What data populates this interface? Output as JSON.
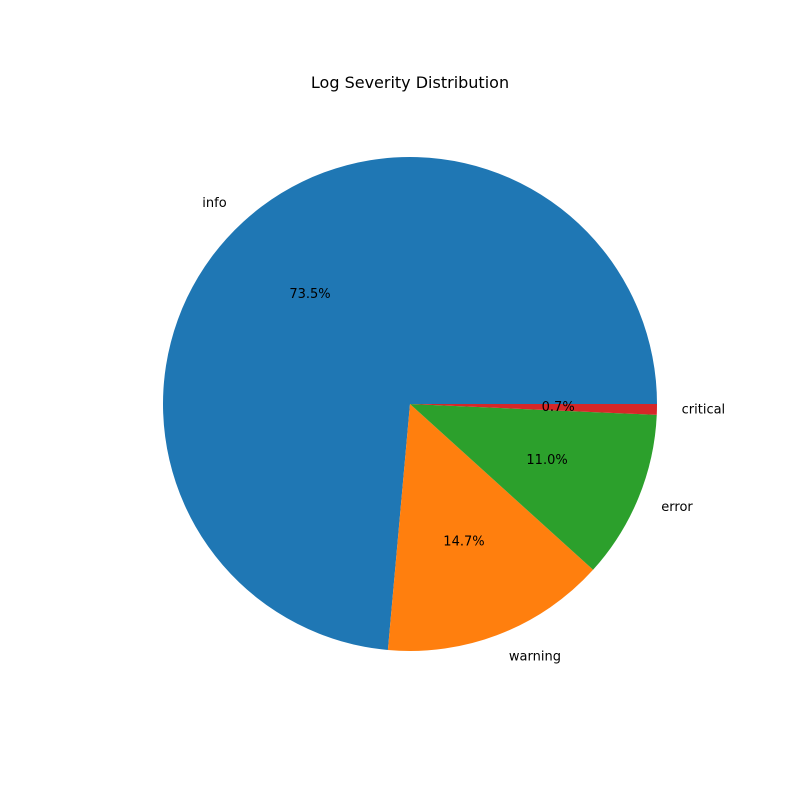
{
  "chart_data": {
    "type": "pie",
    "title": "Log Severity Distribution",
    "categories": [
      "info",
      "warning",
      "error",
      "critical"
    ],
    "values": [
      73.5,
      14.7,
      11.0,
      0.7
    ],
    "percent_labels": [
      "73.5%",
      "14.7%",
      "11.0%",
      "0.7%"
    ],
    "colors": [
      "#1f77b4",
      "#ff7f0e",
      "#2ca02c",
      "#d62728"
    ],
    "start_angle_deg": 0,
    "direction": "counterclockwise",
    "legend": "none"
  }
}
